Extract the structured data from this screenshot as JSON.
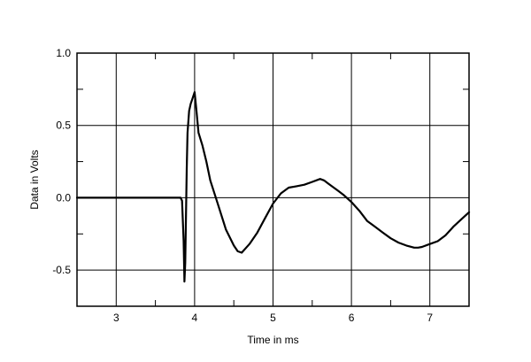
{
  "chart_data": {
    "type": "line",
    "xlabel": "Time in ms",
    "ylabel": "Data in Volts",
    "xlim": [
      2.5,
      7.5
    ],
    "ylim": [
      -0.75,
      1.0
    ],
    "x_ticks": [
      3,
      4,
      5,
      6,
      7
    ],
    "y_ticks": [
      1.0,
      0.5,
      0.0,
      -0.5
    ],
    "y_tick_labels": [
      "1.0",
      "0.5",
      "0.0",
      "-0.5"
    ],
    "grid": true,
    "series": [
      {
        "color": "#000000",
        "x": [
          2.5,
          3.0,
          3.5,
          3.8,
          3.82,
          3.84,
          3.86,
          3.87,
          3.88,
          3.9,
          3.91,
          3.93,
          3.95,
          3.97,
          4.0,
          4.02,
          4.05,
          4.1,
          4.15,
          4.2,
          4.3,
          4.4,
          4.5,
          4.55,
          4.6,
          4.7,
          4.8,
          4.9,
          5.0,
          5.1,
          5.2,
          5.3,
          5.4,
          5.5,
          5.6,
          5.65,
          5.7,
          5.8,
          5.9,
          6.0,
          6.1,
          6.2,
          6.3,
          6.4,
          6.5,
          6.6,
          6.7,
          6.8,
          6.85,
          6.9,
          7.0,
          7.1,
          7.2,
          7.3,
          7.4,
          7.5
        ],
        "y": [
          0.0,
          0.0,
          0.0,
          0.0,
          0.0,
          -0.02,
          -0.3,
          -0.58,
          -0.45,
          0.2,
          0.45,
          0.6,
          0.65,
          0.68,
          0.73,
          0.62,
          0.45,
          0.36,
          0.25,
          0.12,
          -0.05,
          -0.22,
          -0.33,
          -0.37,
          -0.38,
          -0.32,
          -0.24,
          -0.14,
          -0.04,
          0.03,
          0.07,
          0.08,
          0.09,
          0.11,
          0.13,
          0.12,
          0.1,
          0.06,
          0.02,
          -0.03,
          -0.09,
          -0.16,
          -0.2,
          -0.24,
          -0.28,
          -0.31,
          -0.33,
          -0.345,
          -0.345,
          -0.34,
          -0.32,
          -0.3,
          -0.26,
          -0.2,
          -0.15,
          -0.1
        ]
      }
    ]
  }
}
